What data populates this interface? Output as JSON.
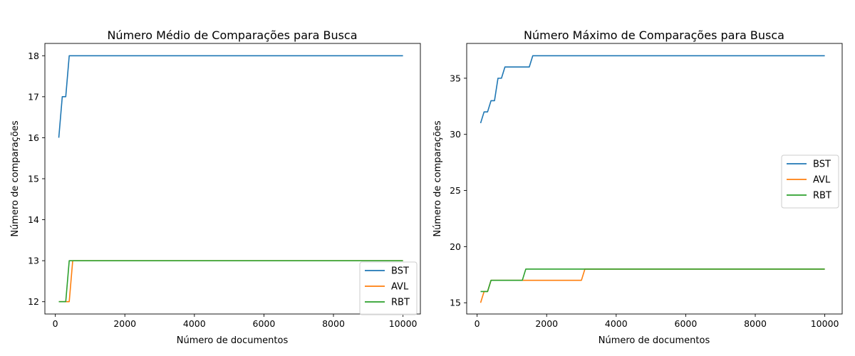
{
  "chart_data": [
    {
      "type": "line",
      "title": "Número Médio de Comparações para Busca",
      "xlabel": "Número de documentos",
      "ylabel": "Número de comparações",
      "xlim": [
        -300,
        10500
      ],
      "ylim": [
        11.7,
        18.3
      ],
      "xticks": [
        0,
        2000,
        4000,
        6000,
        8000,
        10000
      ],
      "xtick_labels": [
        "0",
        "2000",
        "4000",
        "6000",
        "8000",
        "10000"
      ],
      "yticks": [
        12,
        13,
        14,
        15,
        16,
        17,
        18
      ],
      "ytick_labels": [
        "12",
        "13",
        "14",
        "15",
        "16",
        "17",
        "18"
      ],
      "grid": false,
      "legend_position": "lower-right",
      "series": [
        {
          "name": "BST",
          "color": "#1f77b4",
          "x": [
            100,
            200,
            300,
            400,
            500,
            10000
          ],
          "y": [
            16,
            17,
            17,
            18,
            18,
            18
          ]
        },
        {
          "name": "AVL",
          "color": "#ff7f0e",
          "x": [
            100,
            200,
            300,
            400,
            500,
            10000
          ],
          "y": [
            12,
            12,
            12,
            12,
            13,
            13
          ]
        },
        {
          "name": "RBT",
          "color": "#2ca02c",
          "x": [
            100,
            200,
            300,
            400,
            500,
            10000
          ],
          "y": [
            12,
            12,
            12,
            13,
            13,
            13
          ]
        }
      ]
    },
    {
      "type": "line",
      "title": "Número Máximo de Comparações para Busca",
      "xlabel": "Número de documentos",
      "ylabel": "Número de comparações",
      "xlim": [
        -300,
        10500
      ],
      "ylim": [
        14.0,
        38.1
      ],
      "xticks": [
        0,
        2000,
        4000,
        6000,
        8000,
        10000
      ],
      "xtick_labels": [
        "0",
        "2000",
        "4000",
        "6000",
        "8000",
        "10000"
      ],
      "yticks": [
        15,
        20,
        25,
        30,
        35
      ],
      "ytick_labels": [
        "15",
        "20",
        "25",
        "30",
        "35"
      ],
      "grid": false,
      "legend_position": "center-right",
      "series": [
        {
          "name": "BST",
          "color": "#1f77b4",
          "x": [
            100,
            200,
            300,
            400,
            500,
            600,
            700,
            800,
            900,
            1000,
            1100,
            1200,
            1300,
            1400,
            1500,
            1600,
            10000
          ],
          "y": [
            31,
            32,
            32,
            33,
            33,
            35,
            35,
            36,
            36,
            36,
            36,
            36,
            36,
            36,
            36,
            37,
            37
          ]
        },
        {
          "name": "AVL",
          "color": "#ff7f0e",
          "x": [
            100,
            200,
            300,
            400,
            3000,
            3100,
            10000
          ],
          "y": [
            15,
            16,
            16,
            17,
            17,
            18,
            18
          ]
        },
        {
          "name": "RBT",
          "color": "#2ca02c",
          "x": [
            100,
            200,
            300,
            400,
            1300,
            1400,
            10000
          ],
          "y": [
            16,
            16,
            16,
            17,
            17,
            18,
            18
          ]
        }
      ]
    }
  ]
}
